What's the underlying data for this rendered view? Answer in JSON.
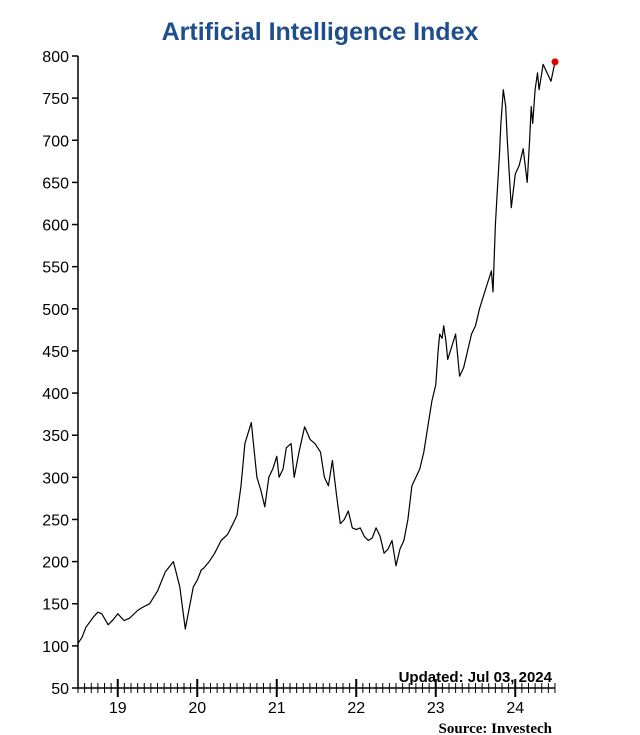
{
  "chart_data": {
    "type": "line",
    "title": "Artificial Intelligence Index",
    "xlabel": "",
    "ylabel": "",
    "ylim": [
      50,
      800
    ],
    "yticks": [
      50,
      100,
      150,
      200,
      250,
      300,
      350,
      400,
      450,
      500,
      550,
      600,
      650,
      700,
      750,
      800
    ],
    "xlim": [
      2018.5,
      2024.5
    ],
    "xtick_labels": [
      {
        "label": "19",
        "x": 2019.5
      },
      {
        "label": "20",
        "x": 2020.5
      },
      {
        "label": "21",
        "x": 2021.5
      },
      {
        "label": "22",
        "x": 2022.5
      },
      {
        "label": "23",
        "x": 2023.5
      },
      {
        "label": "24",
        "x": 2024.5
      }
    ],
    "grid": false,
    "series": [
      {
        "color": "#000000",
        "x": [
          2018.5,
          2018.55,
          2018.6,
          2018.7,
          2018.75,
          2018.8,
          2018.88,
          2018.95,
          2019.0,
          2019.08,
          2019.15,
          2019.25,
          2019.3,
          2019.4,
          2019.5,
          2019.6,
          2019.7,
          2019.78,
          2019.85,
          2019.9,
          2019.95,
          2020.0,
          2020.05,
          2020.08,
          2020.15,
          2020.22,
          2020.3,
          2020.38,
          2020.45,
          2020.5,
          2020.55,
          2020.6,
          2020.68,
          2020.75,
          2020.8,
          2020.85,
          2020.9,
          2020.95,
          2021.0,
          2021.03,
          2021.08,
          2021.12,
          2021.18,
          2021.22,
          2021.28,
          2021.35,
          2021.42,
          2021.48,
          2021.55,
          2021.6,
          2021.65,
          2021.7,
          2021.75,
          2021.8,
          2021.85,
          2021.9,
          2021.95,
          2022.0,
          2022.05,
          2022.1,
          2022.15,
          2022.2,
          2022.25,
          2022.3,
          2022.35,
          2022.4,
          2022.45,
          2022.5,
          2022.55,
          2022.6,
          2022.65,
          2022.7,
          2022.75,
          2022.8,
          2022.85,
          2022.9,
          2022.95,
          2023.0,
          2023.03,
          2023.05,
          2023.08,
          2023.1,
          2023.13,
          2023.15,
          2023.2,
          2023.25,
          2023.3,
          2023.35,
          2023.4,
          2023.45,
          2023.5,
          2023.55,
          2023.6,
          2023.65,
          2023.7,
          2023.72,
          2023.75,
          2023.78,
          2023.8,
          2023.82,
          2023.85,
          2023.88,
          2023.9,
          2023.95,
          2024.0,
          2024.05,
          2024.1,
          2024.15,
          2024.18,
          2024.2,
          2024.22,
          2024.25,
          2024.28,
          2024.3,
          2024.35,
          2024.4,
          2024.45,
          2024.5
        ],
        "values": [
          103,
          110,
          122,
          135,
          140,
          138,
          125,
          132,
          138,
          130,
          133,
          142,
          145,
          150,
          165,
          188,
          200,
          170,
          120,
          145,
          170,
          178,
          190,
          192,
          200,
          210,
          225,
          232,
          245,
          255,
          290,
          340,
          365,
          300,
          285,
          265,
          300,
          310,
          325,
          300,
          310,
          335,
          340,
          300,
          330,
          360,
          345,
          340,
          330,
          300,
          290,
          320,
          280,
          245,
          250,
          260,
          240,
          238,
          240,
          230,
          225,
          228,
          240,
          230,
          210,
          215,
          225,
          195,
          215,
          225,
          250,
          290,
          300,
          310,
          330,
          360,
          390,
          410,
          450,
          470,
          465,
          480,
          460,
          440,
          455,
          470,
          420,
          430,
          450,
          470,
          480,
          500,
          515,
          530,
          545,
          520,
          600,
          650,
          680,
          720,
          760,
          740,
          700,
          620,
          660,
          670,
          690,
          650,
          700,
          740,
          720,
          760,
          780,
          760,
          790,
          780,
          770,
          793
        ]
      }
    ],
    "last_point_marker_color": "#e00000",
    "annotations": {
      "updated": "Updated: Jul 03, 2024",
      "source": "Source:  Investech"
    }
  }
}
